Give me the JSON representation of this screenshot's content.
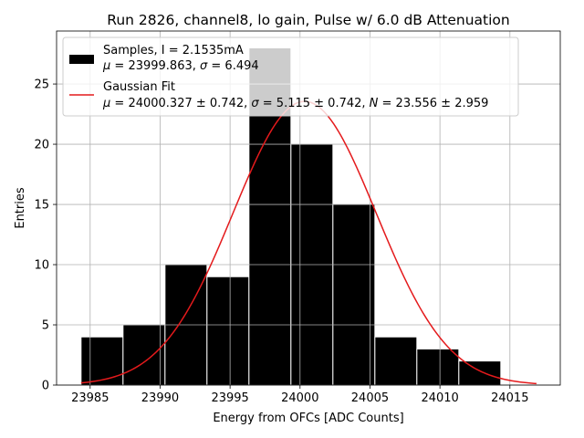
{
  "chart_data": {
    "type": "bar",
    "title": "Run 2826, channel8, lo gain, Pulse w/ 6.0 dB Attenuation",
    "xlabel": "Energy from OFCs [ADC Counts]",
    "ylabel": "Entries",
    "xlim": [
      23982.6,
      24018.6
    ],
    "ylim": [
      0,
      29.4
    ],
    "xticks": [
      23985,
      23990,
      23995,
      24000,
      24005,
      24010,
      24015
    ],
    "yticks": [
      0,
      5,
      10,
      15,
      20,
      25
    ],
    "grid": true,
    "legend_position": "top-left",
    "bin_edges": [
      23984.35,
      23987.35,
      23990.35,
      23993.35,
      23996.35,
      23999.35,
      24002.35,
      24005.35,
      24008.35,
      24011.35,
      24014.35,
      24017.35
    ],
    "bins": [
      {
        "x_start": 23984.35,
        "x_end": 23987.35,
        "value": 4
      },
      {
        "x_start": 23987.35,
        "x_end": 23990.35,
        "value": 5
      },
      {
        "x_start": 23990.35,
        "x_end": 23993.35,
        "value": 10
      },
      {
        "x_start": 23993.35,
        "x_end": 23996.35,
        "value": 9
      },
      {
        "x_start": 23996.35,
        "x_end": 23999.35,
        "value": 28
      },
      {
        "x_start": 23999.35,
        "x_end": 24002.35,
        "value": 20
      },
      {
        "x_start": 24002.35,
        "x_end": 24005.35,
        "value": 15
      },
      {
        "x_start": 24005.35,
        "x_end": 24008.35,
        "value": 4
      },
      {
        "x_start": 24008.35,
        "x_end": 24011.35,
        "value": 3
      },
      {
        "x_start": 24011.35,
        "x_end": 24014.35,
        "value": 2
      }
    ],
    "fit": {
      "mu": 24000.327,
      "sigma": 5.115,
      "N": 23.556,
      "x_range": [
        23984.35,
        24016.9
      ]
    },
    "series": [
      {
        "name": "Samples, I = 2.1535mA",
        "stats": "μ = 23999.863, σ = 6.494",
        "color": "#000000"
      },
      {
        "name": "Gaussian Fit",
        "stats": "μ = 24000.327 ± 0.742, σ = 5.115 ± 0.742, N = 23.556 ± 2.959",
        "color": "#e41a1c"
      }
    ]
  },
  "colors": {
    "bar_fill": "#000000",
    "bar_edge": "#ffffff",
    "fit_line": "#e41a1c",
    "grid": "#b0b0b0",
    "overlap_bar": "#cccccc"
  }
}
